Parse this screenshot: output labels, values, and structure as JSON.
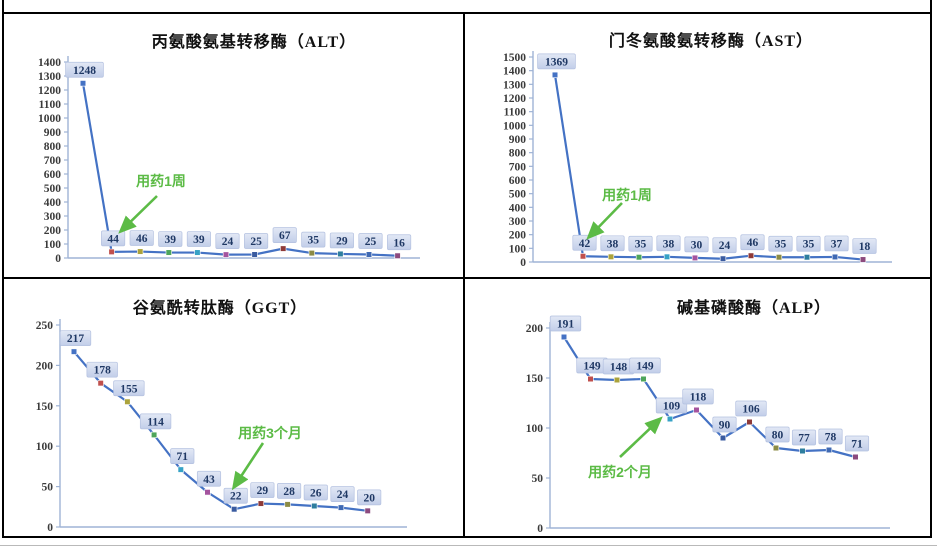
{
  "style": {
    "line_color": "#4472C4",
    "axis_color": "#9FB3D5",
    "tick_label_color": "#3A3A3A",
    "annotation_color": "#5CBB46",
    "label_box_bg_top": "#E2E8F5",
    "label_box_bg_bottom": "#C2CEE9",
    "label_box_border": "#B4C1E0",
    "label_text_color": "#1F3864",
    "marker_palette": [
      "#4472C4",
      "#C0504D",
      "#ABA33C",
      "#4EA55B",
      "#36A2C6",
      "#A4539E",
      "#3A5BA0",
      "#8E3A38",
      "#8B8B45",
      "#2E7E9E",
      "#3F69B3",
      "#8C4A7E"
    ]
  },
  "chart_data": [
    {
      "type": "line",
      "title": "丙氨酸氨基转移酶（ALT）",
      "values": [
        1248,
        44,
        46,
        39,
        39,
        24,
        25,
        67,
        35,
        29,
        25,
        16
      ],
      "data_labels": [
        "1248",
        "44",
        "46",
        "39",
        "39",
        "24",
        "25",
        "67",
        "35",
        "29",
        "25",
        "16"
      ],
      "ylim": [
        0,
        1400
      ],
      "ytick_step": 100,
      "grid": "off",
      "legend": "none",
      "annotation": {
        "text": "用药1周"
      }
    },
    {
      "type": "line",
      "title": "门冬氨酸氨转移酶（AST）",
      "values": [
        1369,
        42,
        38,
        35,
        38,
        30,
        24,
        46,
        35,
        35,
        37,
        18
      ],
      "data_labels": [
        "1369",
        "42",
        "38",
        "35",
        "38",
        "30",
        "24",
        "46",
        "35",
        "35",
        "37",
        "18"
      ],
      "ylim": [
        0,
        1500
      ],
      "ytick_step": 100,
      "grid": "off",
      "legend": "none",
      "annotation": {
        "text": "用药1周"
      }
    },
    {
      "type": "line",
      "title": "谷氨酰转肽酶（GGT）",
      "values": [
        217,
        178,
        155,
        114,
        71,
        43,
        22,
        29,
        28,
        26,
        24,
        20
      ],
      "data_labels": [
        "217",
        "178",
        "155",
        "114",
        "71",
        "43",
        "22",
        "29",
        "28",
        "26",
        "24",
        "20"
      ],
      "ylim": [
        0,
        250
      ],
      "ytick_step": 50,
      "grid": "off",
      "legend": "none",
      "annotation": {
        "text": "用药3个月"
      }
    },
    {
      "type": "line",
      "title": "碱基磷酸酶（ALP）",
      "values": [
        191,
        149,
        148,
        149,
        109,
        118,
        90,
        106,
        80,
        77,
        78,
        71
      ],
      "data_labels": [
        "191",
        "149",
        "148",
        "149",
        "109",
        "118",
        "90",
        "106",
        "80",
        "77",
        "78",
        "71"
      ],
      "ylim": [
        0,
        200
      ],
      "ytick_step": 50,
      "grid": "off",
      "legend": "none",
      "annotation": {
        "text": "用药2个月"
      }
    }
  ]
}
